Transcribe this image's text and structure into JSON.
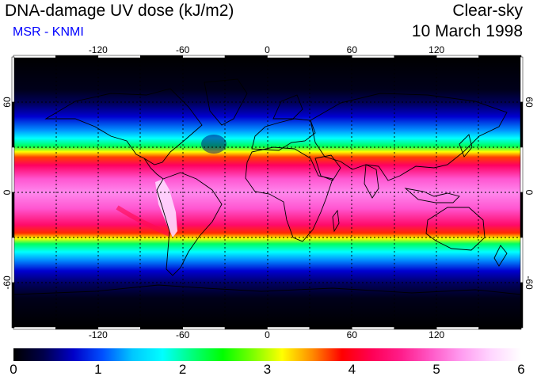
{
  "header": {
    "title": "DNA-damage UV dose (kJ/m2)",
    "subtitle": "MSR - KNMI",
    "condition": "Clear-sky",
    "date": "10 March 1998"
  },
  "colors": {
    "subtitle": "#0000ff",
    "scale": [
      "#000000",
      "#00004a",
      "#0000c8",
      "#0050ff",
      "#00c8ff",
      "#00ffff",
      "#00ff7a",
      "#00ff00",
      "#7aff00",
      "#ffff00",
      "#ff8c00",
      "#ff0000",
      "#ff0055",
      "#ff1e8c",
      "#ff5ac8",
      "#ff9cf0",
      "#ffd6ff",
      "#ffffff"
    ]
  },
  "map": {
    "lon_ticks": [
      "-120",
      "-60",
      "0",
      "60",
      "120"
    ],
    "lat_ticks": [
      "60",
      "0",
      "-60"
    ],
    "lon_range": [
      -180,
      180
    ],
    "lat_range": [
      -90,
      90
    ],
    "grid": "dashed every 30 degrees"
  },
  "colorbar": {
    "labels": [
      "0",
      "1",
      "2",
      "3",
      "4",
      "5",
      "6"
    ],
    "range": [
      0,
      6
    ]
  }
}
